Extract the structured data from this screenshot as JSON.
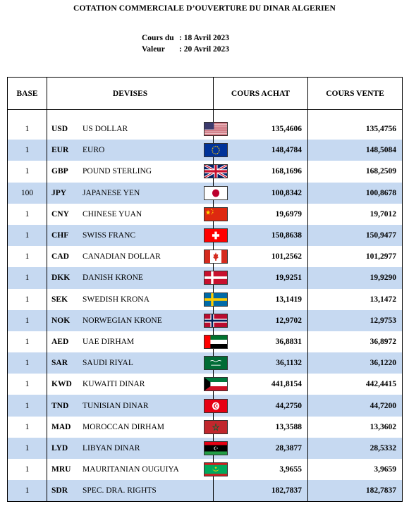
{
  "title": "COTATION COMMERCIALE D’OUVERTURE DU DINAR ALGERIEN",
  "dates": {
    "cours_label": "Cours du",
    "cours_value": ": 18 Avril 2023",
    "valeur_label": "Valeur",
    "valeur_value": ": 20 Avril 2023"
  },
  "table": {
    "headers": {
      "base": "BASE",
      "devises": "DEVISES",
      "achat": "COURS ACHAT",
      "vente": "COURS VENTE"
    },
    "rows": [
      {
        "base": "1",
        "code": "USD",
        "name": "US DOLLAR",
        "flag": "us-flag-icon",
        "achat": "135,4606",
        "vente": "135,4756"
      },
      {
        "base": "1",
        "code": "EUR",
        "name": "EURO",
        "flag": "eu-flag-icon",
        "achat": "148,4784",
        "vente": "148,5084"
      },
      {
        "base": "1",
        "code": "GBP",
        "name": "POUND STERLING",
        "flag": "uk-flag-icon",
        "achat": "168,1696",
        "vente": "168,2509"
      },
      {
        "base": "100",
        "code": "JPY",
        "name": "JAPANESE YEN",
        "flag": "japan-flag-icon",
        "achat": "100,8342",
        "vente": "100,8678"
      },
      {
        "base": "1",
        "code": "CNY",
        "name": "CHINESE YUAN",
        "flag": "china-flag-icon",
        "achat": "19,6979",
        "vente": "19,7012"
      },
      {
        "base": "1",
        "code": "CHF",
        "name": "SWISS FRANC",
        "flag": "switzerland-flag-icon",
        "achat": "150,8638",
        "vente": "150,9477"
      },
      {
        "base": "1",
        "code": "CAD",
        "name": "CANADIAN DOLLAR",
        "flag": "canada-flag-icon",
        "achat": "101,2562",
        "vente": "101,2977"
      },
      {
        "base": "1",
        "code": "DKK",
        "name": "DANISH KRONE",
        "flag": "denmark-flag-icon",
        "achat": "19,9251",
        "vente": "19,9290"
      },
      {
        "base": "1",
        "code": "SEK",
        "name": "SWEDISH KRONA",
        "flag": "sweden-flag-icon",
        "achat": "13,1419",
        "vente": "13,1472"
      },
      {
        "base": "1",
        "code": "NOK",
        "name": "NORWEGIAN KRONE",
        "flag": "norway-flag-icon",
        "achat": "12,9702",
        "vente": "12,9753"
      },
      {
        "base": "1",
        "code": "AED",
        "name": "UAE DIRHAM",
        "flag": "uae-flag-icon",
        "achat": "36,8831",
        "vente": "36,8972"
      },
      {
        "base": "1",
        "code": "SAR",
        "name": "SAUDI RIYAL",
        "flag": "saudi-flag-icon",
        "achat": "36,1132",
        "vente": "36,1220"
      },
      {
        "base": "1",
        "code": "KWD",
        "name": "KUWAITI DINAR",
        "flag": "kuwait-flag-icon",
        "achat": "441,8154",
        "vente": "442,4415"
      },
      {
        "base": "1",
        "code": "TND",
        "name": "TUNISIAN DINAR",
        "flag": "tunisia-flag-icon",
        "achat": "44,2750",
        "vente": "44,7200"
      },
      {
        "base": "1",
        "code": "MAD",
        "name": "MOROCCAN DIRHAM",
        "flag": "morocco-flag-icon",
        "achat": "13,3588",
        "vente": "13,3602"
      },
      {
        "base": "1",
        "code": "LYD",
        "name": "LIBYAN DINAR",
        "flag": "libya-flag-icon",
        "achat": "28,3877",
        "vente": "28,5332"
      },
      {
        "base": "1",
        "code": "MRU",
        "name": "MAURITANIAN OUGUIYA",
        "flag": "mauritania-flag-icon",
        "achat": "3,9655",
        "vente": "3,9659"
      },
      {
        "base": "1",
        "code": "SDR",
        "name": "SPEC. DRA. RIGHTS",
        "flag": "",
        "achat": "182,7837",
        "vente": "182,7837"
      }
    ]
  },
  "colors": {
    "row_shade": "#c6d9f1"
  }
}
